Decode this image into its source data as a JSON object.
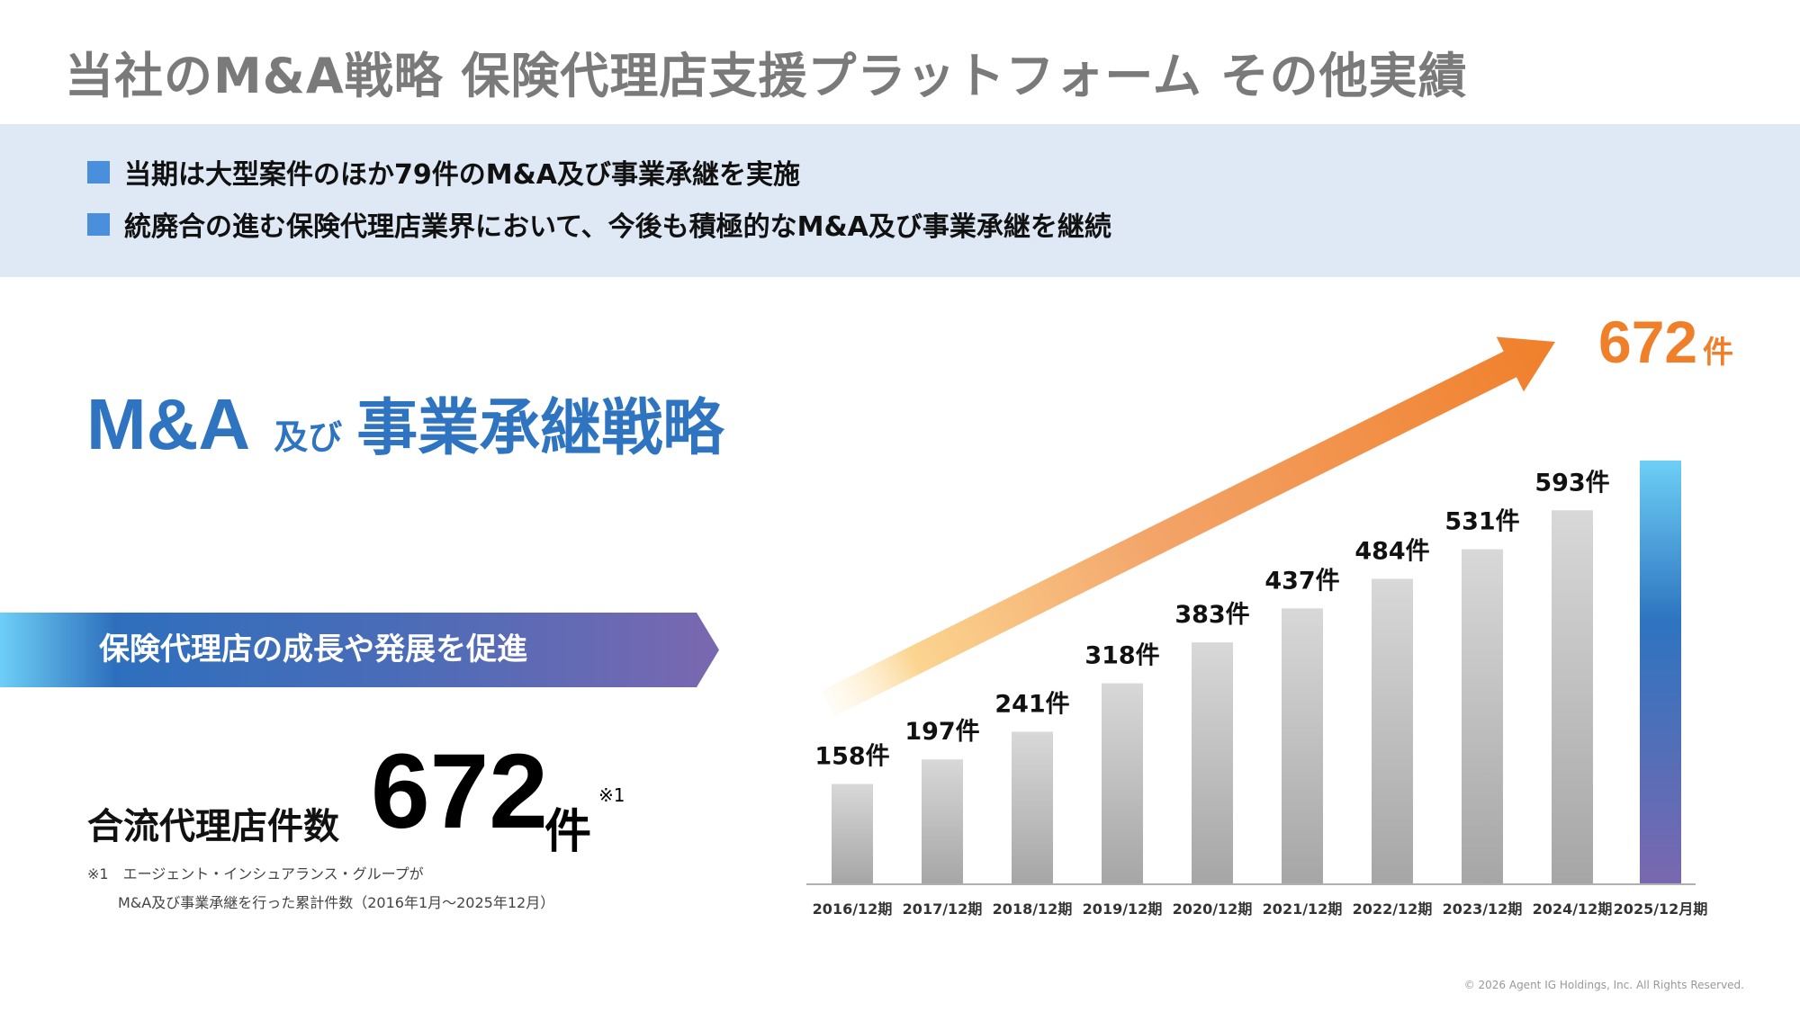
{
  "header": {
    "title": "当社のM&A戦略 保険代理店支援プラットフォーム その他実績"
  },
  "summary": {
    "bullets": [
      "当期は大型案件のほか79件のM&A及び事業承継を実施",
      "統廃合の進む保険代理店業界において、今後も積極的なM&A及び事業承継を継続"
    ]
  },
  "strategy": {
    "title_part1": "M&A",
    "title_part2": "及び",
    "title_part3": "事業承継戦略"
  },
  "banner": {
    "text": "保険代理店の成長や発展を促進"
  },
  "total": {
    "label": "合流代理店件数",
    "value": "672",
    "unit": "件",
    "note_mark": "※1"
  },
  "footnote": {
    "line1": "※1　エージェント・インシュアランス・グループが",
    "line2": "M&A及び事業承継を行った累計件数（2016年1月～2025年12月）"
  },
  "highlight": {
    "value": "672",
    "unit": "件"
  },
  "colors": {
    "accent_blue": "#2e74c0",
    "bullet_blue": "#4a8fdc",
    "band": "#dfe9f5",
    "orange": "#f07f2a",
    "bar_gray_top": "#d8d8d8",
    "bar_gray_bottom": "#a6a6a6",
    "highlight_top": "#6dcff6",
    "highlight_mid": "#2e74c0",
    "highlight_bottom": "#7a68b0"
  },
  "chart_data": {
    "type": "bar",
    "title": "",
    "xlabel": "",
    "ylabel": "",
    "ylim": [
      0,
      672
    ],
    "grid": false,
    "categories": [
      "2016/12期",
      "2017/12期",
      "2018/12期",
      "2019/12期",
      "2020/12期",
      "2021/12期",
      "2022/12期",
      "2023/12期",
      "2024/12期",
      "2025/12月期"
    ],
    "values": [
      158,
      197,
      241,
      318,
      383,
      437,
      484,
      531,
      593,
      672
    ],
    "data_labels": [
      "158件",
      "197件",
      "241件",
      "318件",
      "383件",
      "437件",
      "484件",
      "531件",
      "593件",
      ""
    ],
    "highlight_index": 9,
    "annotation": "672件"
  },
  "footer": {
    "copyright": "© 2026 Agent IG Holdings, Inc. All Rights Reserved."
  }
}
